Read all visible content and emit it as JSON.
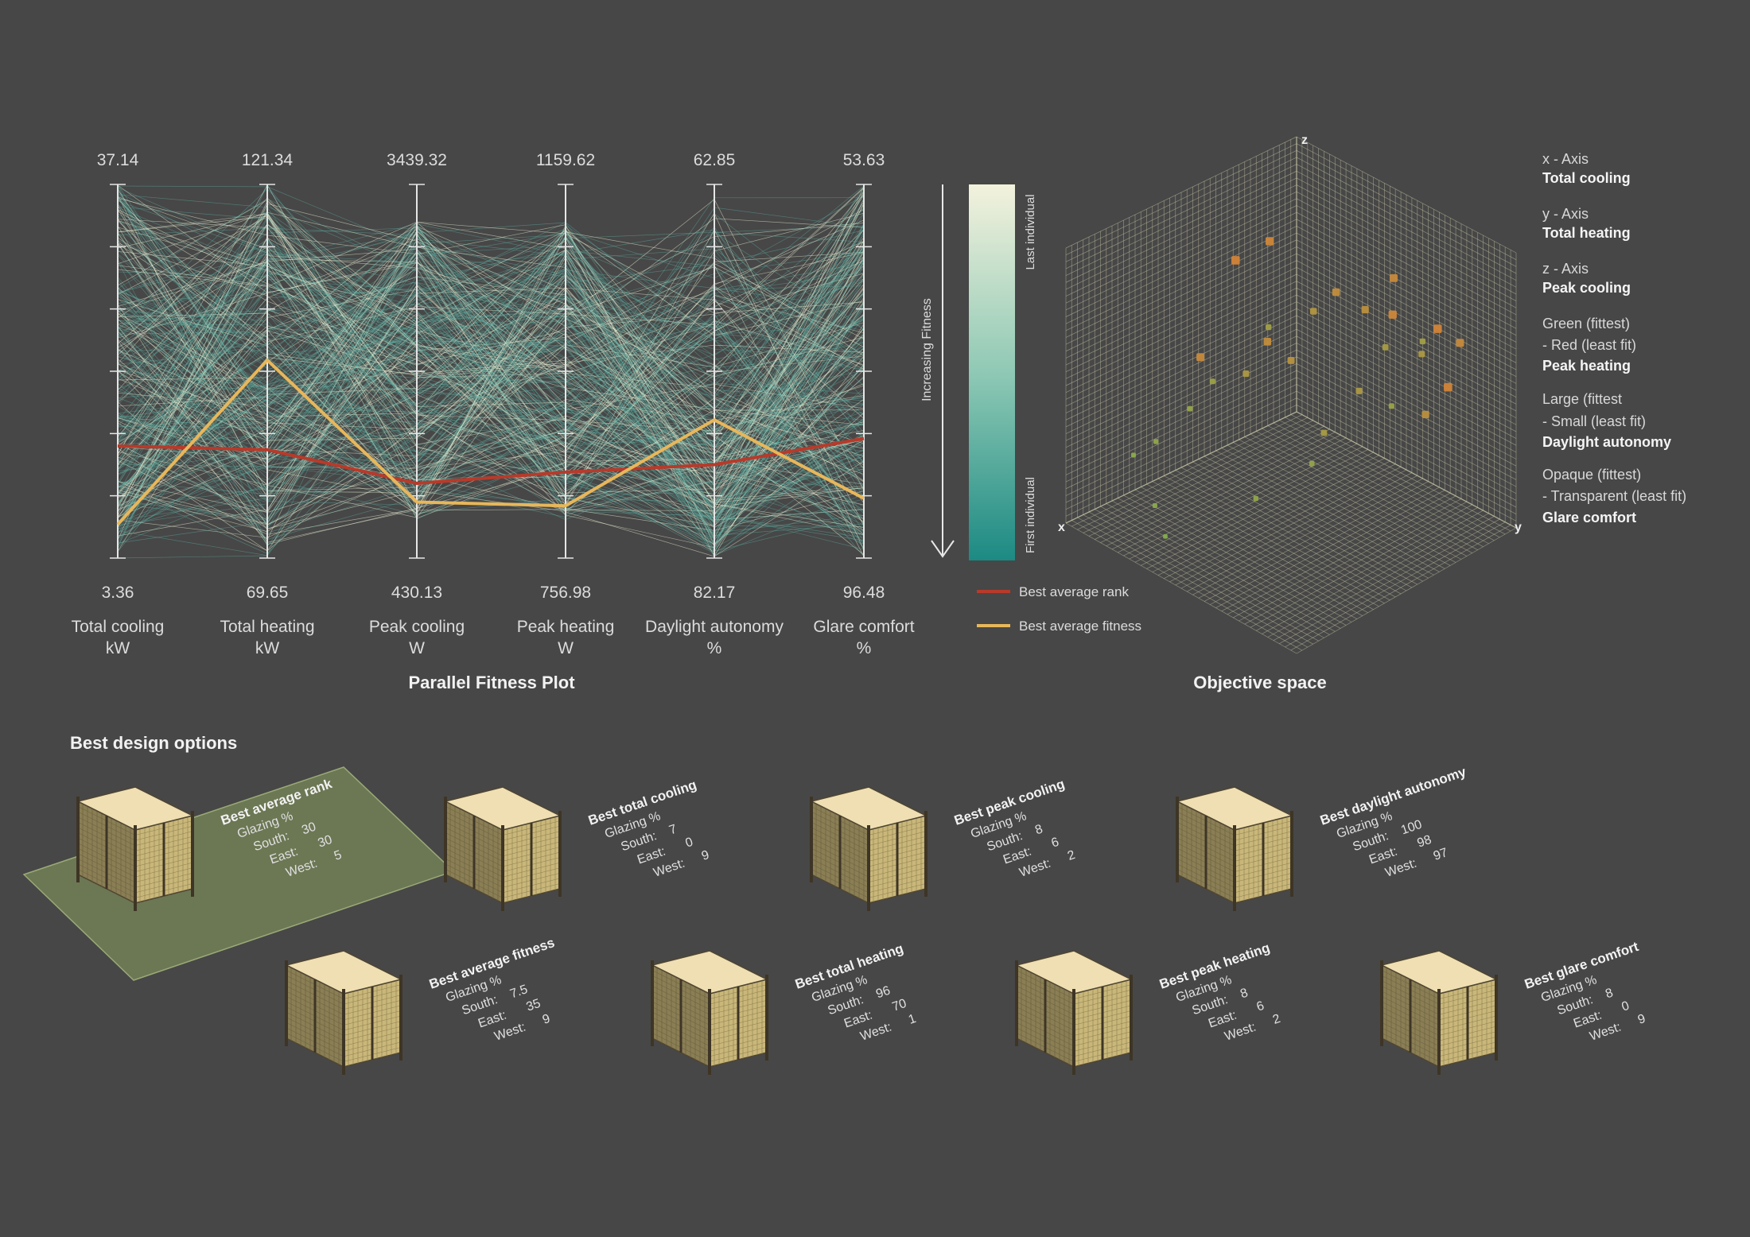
{
  "titles": {
    "parallel": "Parallel Fitness Plot",
    "objective": "Objective space",
    "best_options": "Best design options"
  },
  "colors": {
    "background": "#474747",
    "line_teal": "#5fb6a8",
    "line_pale": "#e9f1d6",
    "best_rank": "#b83a2a",
    "best_fitness": "#e8b75a",
    "gradient_top": "#f1f1dc",
    "gradient_bottom": "#1f8e85",
    "highlight_plane": "#6e7a55"
  },
  "chart_data": [
    {
      "type": "parallel",
      "title": "Parallel Fitness Plot",
      "axes": [
        {
          "name": "Total cooling",
          "unit": "kW",
          "top": "37.14",
          "bottom": "3.36"
        },
        {
          "name": "Total heating",
          "unit": "kW",
          "top": "121.34",
          "bottom": "69.65"
        },
        {
          "name": "Peak cooling",
          "unit": "W",
          "top": "3439.32",
          "bottom": "430.13"
        },
        {
          "name": "Peak heating",
          "unit": "W",
          "top": "1159.62",
          "bottom": "756.98"
        },
        {
          "name": "Daylight autonomy",
          "unit": "%",
          "top": "62.85",
          "bottom": "82.17"
        },
        {
          "name": "Glare comfort",
          "unit": "%",
          "top": "53.63",
          "bottom": "96.48"
        }
      ],
      "series": [
        {
          "name": "Best average rank",
          "color": "#b83a2a",
          "normalized_position_from_top": [
            0.7,
            0.71,
            0.8,
            0.77,
            0.75,
            0.68
          ]
        },
        {
          "name": "Best average fitness",
          "color": "#e8b75a",
          "normalized_position_from_top": [
            0.91,
            0.47,
            0.85,
            0.86,
            0.63,
            0.84
          ]
        }
      ],
      "population_lines": 320,
      "colorbar": {
        "label": "Increasing Fitness",
        "top_label": "Last individual",
        "bottom_label": "First individual"
      },
      "legend": [
        {
          "label": "Best average rank",
          "color": "#b83a2a"
        },
        {
          "label": "Best average fitness",
          "color": "#e8b75a"
        }
      ]
    },
    {
      "type": "scatter3d",
      "title": "Objective space",
      "axis_labels": {
        "x": "x",
        "y": "y",
        "z": "z"
      },
      "points": [
        {
          "x": 0.1,
          "y": 0.85,
          "z": 0.65,
          "fitness": 0.3
        },
        {
          "x": 0.15,
          "y": 0.8,
          "z": 0.7,
          "fitness": 0.2
        },
        {
          "x": 0.2,
          "y": 0.78,
          "z": 0.62,
          "fitness": 0.55
        },
        {
          "x": 0.25,
          "y": 0.7,
          "z": 0.75,
          "fitness": 0.25
        },
        {
          "x": 0.3,
          "y": 0.72,
          "z": 0.66,
          "fitness": 0.6
        },
        {
          "x": 0.35,
          "y": 0.68,
          "z": 0.8,
          "fitness": 0.4
        },
        {
          "x": 0.4,
          "y": 0.6,
          "z": 0.85,
          "fitness": 0.35
        },
        {
          "x": 0.45,
          "y": 0.55,
          "z": 0.78,
          "fitness": 0.5
        },
        {
          "x": 0.5,
          "y": 0.5,
          "z": 0.6,
          "fitness": 0.45
        },
        {
          "x": 0.55,
          "y": 0.45,
          "z": 0.72,
          "fitness": 0.65
        },
        {
          "x": 0.6,
          "y": 0.4,
          "z": 0.55,
          "fitness": 0.55
        },
        {
          "x": 0.65,
          "y": 0.3,
          "z": 0.5,
          "fitness": 0.7
        },
        {
          "x": 0.7,
          "y": 0.25,
          "z": 0.4,
          "fitness": 0.75
        },
        {
          "x": 0.8,
          "y": 0.2,
          "z": 0.3,
          "fitness": 0.8
        },
        {
          "x": 0.85,
          "y": 0.15,
          "z": 0.25,
          "fitness": 0.85
        },
        {
          "x": 0.75,
          "y": 0.35,
          "z": 0.65,
          "fitness": 0.3
        },
        {
          "x": 0.2,
          "y": 0.9,
          "z": 0.55,
          "fitness": 0.2
        },
        {
          "x": 0.12,
          "y": 0.7,
          "z": 0.6,
          "fitness": 0.65
        },
        {
          "x": 0.3,
          "y": 0.6,
          "z": 0.45,
          "fitness": 0.55
        },
        {
          "x": 0.5,
          "y": 0.65,
          "z": 0.4,
          "fitness": 0.6
        },
        {
          "x": 0.6,
          "y": 0.7,
          "z": 0.35,
          "fitness": 0.75
        },
        {
          "x": 0.7,
          "y": 0.55,
          "z": 0.2,
          "fitness": 0.8
        },
        {
          "x": 0.9,
          "y": 0.3,
          "z": 0.15,
          "fitness": 0.85
        },
        {
          "x": 0.95,
          "y": 0.4,
          "z": 0.1,
          "fitness": 0.9
        },
        {
          "x": 0.55,
          "y": 0.3,
          "z": 0.9,
          "fitness": 0.2
        },
        {
          "x": 0.45,
          "y": 0.35,
          "z": 0.95,
          "fitness": 0.25
        },
        {
          "x": 0.65,
          "y": 0.55,
          "z": 0.75,
          "fitness": 0.35
        },
        {
          "x": 0.35,
          "y": 0.8,
          "z": 0.5,
          "fitness": 0.7
        },
        {
          "x": 0.25,
          "y": 0.85,
          "z": 0.45,
          "fitness": 0.4
        },
        {
          "x": 0.15,
          "y": 0.6,
          "z": 0.8,
          "fitness": 0.3
        }
      ]
    }
  ],
  "legend_right": [
    {
      "label": "x - Axis",
      "value": "Total cooling"
    },
    {
      "label": "y - Axis",
      "value": "Total heating"
    },
    {
      "label": "z - Axis",
      "value": "Peak cooling"
    },
    {
      "label": "Green (fittest)",
      "label2": "- Red (least fit)",
      "value": "Peak heating"
    },
    {
      "label": "Large (fittest",
      "label2": "- Small (least fit)",
      "value": "Daylight autonomy"
    },
    {
      "label": "Opaque (fittest)",
      "label2": "- Transparent (least fit)",
      "value": "Glare comfort"
    }
  ],
  "designs": [
    {
      "title": "Best average rank",
      "glazing_label": "Glazing %",
      "south_label": "South:",
      "south": "30",
      "east_label": "East:",
      "east": "30",
      "west_label": "West:",
      "west": "5"
    },
    {
      "title": "Best total cooling",
      "glazing_label": "Glazing %",
      "south_label": "South:",
      "south": "7",
      "east_label": "East:",
      "east": "0",
      "west_label": "West:",
      "west": "9"
    },
    {
      "title": "Best peak cooling",
      "glazing_label": "Glazing %",
      "south_label": "South:",
      "south": "8",
      "east_label": "East:",
      "east": "6",
      "west_label": "West:",
      "west": "2"
    },
    {
      "title": "Best daylight autonomy",
      "glazing_label": "Glazing %",
      "south_label": "South:",
      "south": "100",
      "east_label": "East:",
      "east": "98",
      "west_label": "West:",
      "west": "97"
    },
    {
      "title": "Best average fitness",
      "glazing_label": "Glazing %",
      "south_label": "South:",
      "south": "7.5",
      "east_label": "East:",
      "east": "35",
      "west_label": "West:",
      "west": "9"
    },
    {
      "title": "Best total heating",
      "glazing_label": "Glazing %",
      "south_label": "South:",
      "south": "96",
      "east_label": "East:",
      "east": "70",
      "west_label": "West:",
      "west": "1"
    },
    {
      "title": "Best peak heating",
      "glazing_label": "Glazing %",
      "south_label": "South:",
      "south": "8",
      "east_label": "East:",
      "east": "6",
      "west_label": "West:",
      "west": "2"
    },
    {
      "title": "Best glare comfort",
      "glazing_label": "Glazing %",
      "south_label": "South:",
      "south": "8",
      "east_label": "East:",
      "east": "0",
      "west_label": "West:",
      "west": "9"
    }
  ]
}
